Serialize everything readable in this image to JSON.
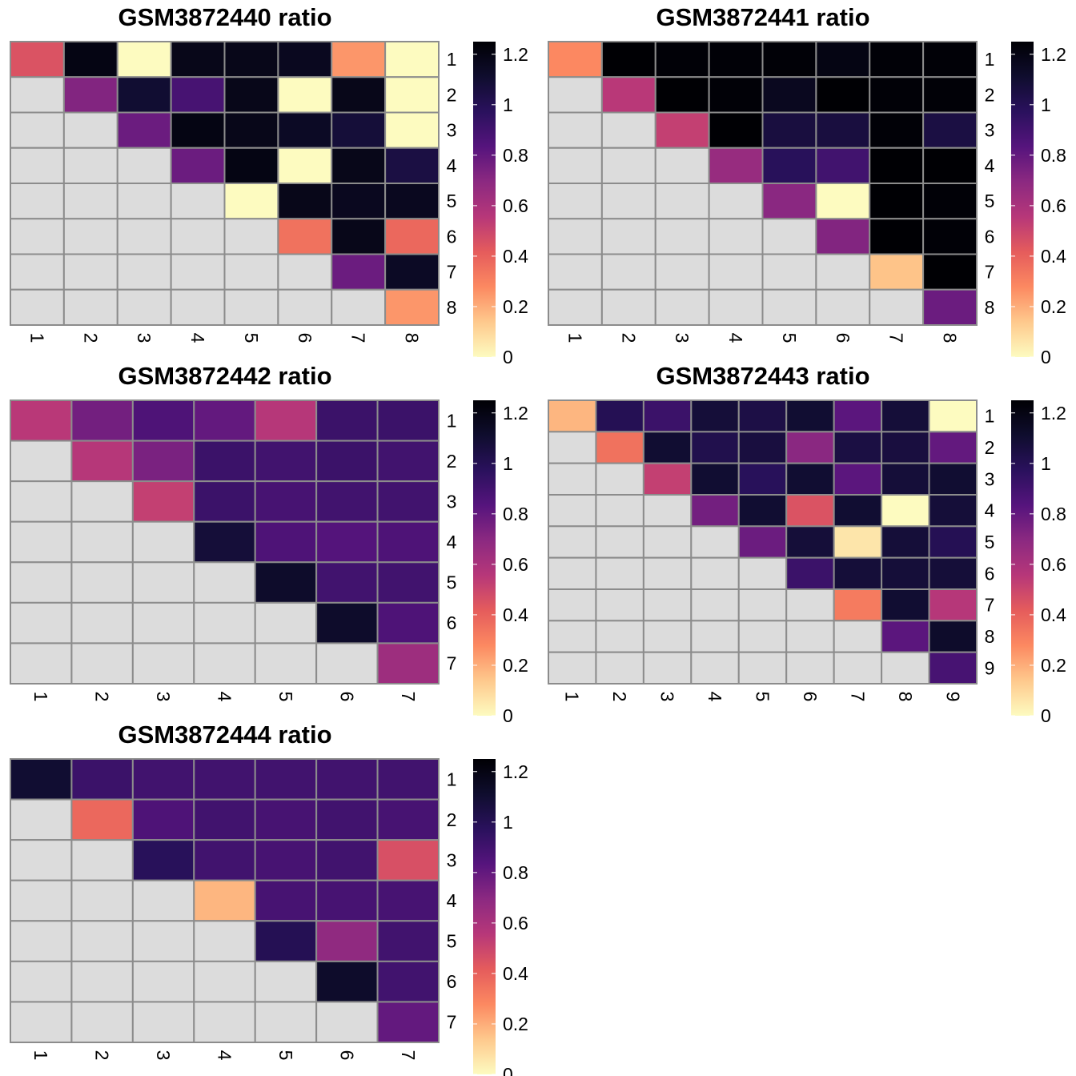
{
  "colors": {
    "lower_triangle_fill": "#dcdcdc",
    "grid_stroke": "#8c8c8c",
    "background": "#ffffff",
    "scale": "magma (reversed)",
    "scale_stops": [
      "#fdfbc0",
      "#fec98d",
      "#fc8961",
      "#e55c5c",
      "#b73779",
      "#8c2981",
      "#56147d",
      "#2a115d",
      "#0f0d2e",
      "#000004"
    ]
  },
  "chart_data": [
    {
      "type": "heatmap",
      "title": "GSM3872440 ratio",
      "x_tick_labels": [
        "1",
        "2",
        "3",
        "4",
        "5",
        "6",
        "7",
        "8"
      ],
      "y_tick_labels": [
        "1",
        "2",
        "3",
        "4",
        "5",
        "6",
        "7",
        "8"
      ],
      "lower_triangle": "not shown (grey)",
      "colorbar": {
        "ticks": [
          "0",
          "0.2",
          "0.4",
          "0.6",
          "0.8",
          "1",
          "1.2"
        ],
        "range": [
          0,
          1.25
        ]
      },
      "values": [
        [
          0.45,
          1.2,
          0.0,
          1.18,
          1.18,
          1.16,
          0.25,
          0.0
        ],
        [
          null,
          0.72,
          1.1,
          0.88,
          1.18,
          0.0,
          1.18,
          0.0
        ],
        [
          null,
          null,
          0.78,
          1.2,
          1.18,
          1.14,
          1.08,
          0.0
        ],
        [
          null,
          null,
          null,
          0.78,
          1.2,
          0.0,
          1.18,
          1.05
        ],
        [
          null,
          null,
          null,
          null,
          0.0,
          1.18,
          1.16,
          1.16
        ],
        [
          null,
          null,
          null,
          null,
          null,
          0.35,
          1.18,
          0.38
        ],
        [
          null,
          null,
          null,
          null,
          null,
          null,
          0.78,
          1.14
        ],
        [
          null,
          null,
          null,
          null,
          null,
          null,
          null,
          0.25
        ]
      ]
    },
    {
      "type": "heatmap",
      "title": "GSM3872441 ratio",
      "x_tick_labels": [
        "1",
        "2",
        "3",
        "4",
        "5",
        "6",
        "7",
        "8"
      ],
      "y_tick_labels": [
        "1",
        "2",
        "3",
        "4",
        "5",
        "6",
        "7",
        "8"
      ],
      "lower_triangle": "not shown (grey)",
      "colorbar": {
        "ticks": [
          "0",
          "0.2",
          "0.4",
          "0.6",
          "0.8",
          "1",
          "1.2"
        ],
        "range": [
          0,
          1.25
        ]
      },
      "values": [
        [
          0.28,
          1.25,
          1.24,
          1.24,
          1.24,
          1.2,
          1.24,
          1.24
        ],
        [
          null,
          0.55,
          1.25,
          1.24,
          1.16,
          1.25,
          1.24,
          1.24
        ],
        [
          null,
          null,
          0.52,
          1.25,
          1.06,
          1.06,
          1.24,
          1.05
        ],
        [
          null,
          null,
          null,
          0.66,
          0.98,
          0.9,
          1.25,
          1.25
        ],
        [
          null,
          null,
          null,
          null,
          0.7,
          0.0,
          1.25,
          1.24
        ],
        [
          null,
          null,
          null,
          null,
          null,
          0.72,
          1.25,
          1.24
        ],
        [
          null,
          null,
          null,
          null,
          null,
          null,
          0.15,
          1.25
        ],
        [
          null,
          null,
          null,
          null,
          null,
          null,
          null,
          0.78
        ]
      ]
    },
    {
      "type": "heatmap",
      "title": "GSM3872442 ratio",
      "x_tick_labels": [
        "1",
        "2",
        "3",
        "4",
        "5",
        "6",
        "7"
      ],
      "y_tick_labels": [
        "1",
        "2",
        "3",
        "4",
        "5",
        "6",
        "7"
      ],
      "lower_triangle": "not shown (grey)",
      "colorbar": {
        "ticks": [
          "0",
          "0.2",
          "0.4",
          "0.6",
          "0.8",
          "1",
          "1.2"
        ],
        "range": [
          0,
          1.25
        ]
      },
      "values": [
        [
          0.55,
          0.76,
          0.86,
          0.8,
          0.56,
          0.92,
          0.92
        ],
        [
          null,
          0.56,
          0.74,
          0.92,
          0.9,
          0.92,
          0.9
        ],
        [
          null,
          null,
          0.52,
          0.92,
          0.88,
          0.9,
          0.9
        ],
        [
          null,
          null,
          null,
          1.08,
          0.86,
          0.84,
          0.86
        ],
        [
          null,
          null,
          null,
          null,
          1.12,
          0.9,
          0.9
        ],
        [
          null,
          null,
          null,
          null,
          null,
          1.12,
          0.86
        ],
        [
          null,
          null,
          null,
          null,
          null,
          null,
          0.64
        ]
      ]
    },
    {
      "type": "heatmap",
      "title": "GSM3872443 ratio",
      "x_tick_labels": [
        "1",
        "2",
        "3",
        "4",
        "5",
        "6",
        "7",
        "8",
        "9"
      ],
      "y_tick_labels": [
        "1",
        "2",
        "3",
        "4",
        "5",
        "6",
        "7",
        "8",
        "9"
      ],
      "lower_triangle": "not shown (grey)",
      "colorbar": {
        "ticks": [
          "0",
          "0.2",
          "0.4",
          "0.6",
          "0.8",
          "1",
          "1.2"
        ],
        "range": [
          0,
          1.25
        ]
      },
      "values": [
        [
          0.18,
          1.0,
          0.92,
          1.08,
          1.04,
          1.1,
          0.82,
          1.08,
          0.0
        ],
        [
          null,
          0.35,
          1.1,
          1.02,
          1.06,
          0.7,
          1.05,
          1.06,
          0.8
        ],
        [
          null,
          null,
          0.52,
          1.1,
          0.98,
          1.1,
          0.82,
          1.08,
          1.1
        ],
        [
          null,
          null,
          null,
          0.76,
          1.1,
          0.45,
          1.1,
          0.0,
          1.08
        ],
        [
          null,
          null,
          null,
          null,
          0.78,
          1.08,
          0.06,
          1.08,
          1.0
        ],
        [
          null,
          null,
          null,
          null,
          null,
          0.92,
          1.08,
          1.08,
          1.08
        ],
        [
          null,
          null,
          null,
          null,
          null,
          null,
          0.32,
          1.1,
          0.56
        ],
        [
          null,
          null,
          null,
          null,
          null,
          null,
          null,
          0.82,
          1.12
        ],
        [
          null,
          null,
          null,
          null,
          null,
          null,
          null,
          null,
          0.88
        ]
      ]
    },
    {
      "type": "heatmap",
      "title": "GSM3872444 ratio",
      "x_tick_labels": [
        "1",
        "2",
        "3",
        "4",
        "5",
        "6",
        "7"
      ],
      "y_tick_labels": [
        "1",
        "2",
        "3",
        "4",
        "5",
        "6",
        "7"
      ],
      "lower_triangle": "not shown (grey)",
      "colorbar": {
        "ticks": [
          "0",
          "0.2",
          "0.4",
          "0.6",
          "0.8",
          "1",
          "1.2"
        ],
        "range": [
          0,
          1.25
        ]
      },
      "values": [
        [
          1.1,
          0.92,
          0.9,
          0.9,
          0.9,
          0.9,
          0.9
        ],
        [
          null,
          0.38,
          0.86,
          0.9,
          0.88,
          0.9,
          0.88
        ],
        [
          null,
          null,
          0.98,
          0.9,
          0.88,
          0.9,
          0.46
        ],
        [
          null,
          null,
          null,
          0.18,
          0.88,
          0.88,
          0.88
        ],
        [
          null,
          null,
          null,
          null,
          1.0,
          0.68,
          0.9
        ],
        [
          null,
          null,
          null,
          null,
          null,
          1.12,
          0.9
        ],
        [
          null,
          null,
          null,
          null,
          null,
          null,
          0.8
        ]
      ]
    }
  ]
}
